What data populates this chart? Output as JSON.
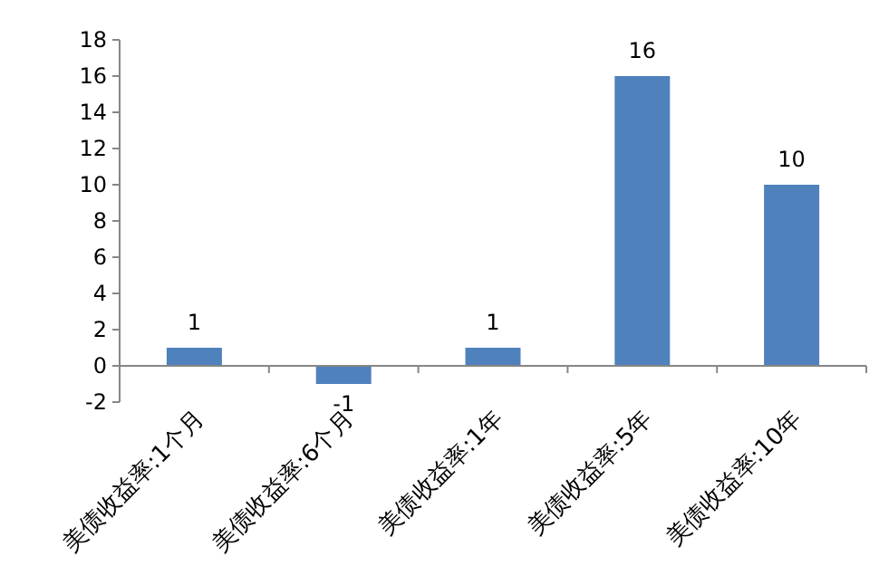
{
  "chart_data": {
    "type": "bar",
    "categories": [
      "美债收益率:1个月",
      "美债收益率:6个月",
      "美债收益率:1年",
      "美债收益率:5年",
      "美债收益率:10年"
    ],
    "values": [
      1,
      -1,
      1,
      16,
      10
    ],
    "color": "#4f81bd",
    "ylim": [
      -2,
      18
    ],
    "yticks": [
      -2,
      0,
      2,
      4,
      6,
      8,
      10,
      12,
      14,
      16,
      18
    ],
    "data_labels": true,
    "grid": false
  }
}
